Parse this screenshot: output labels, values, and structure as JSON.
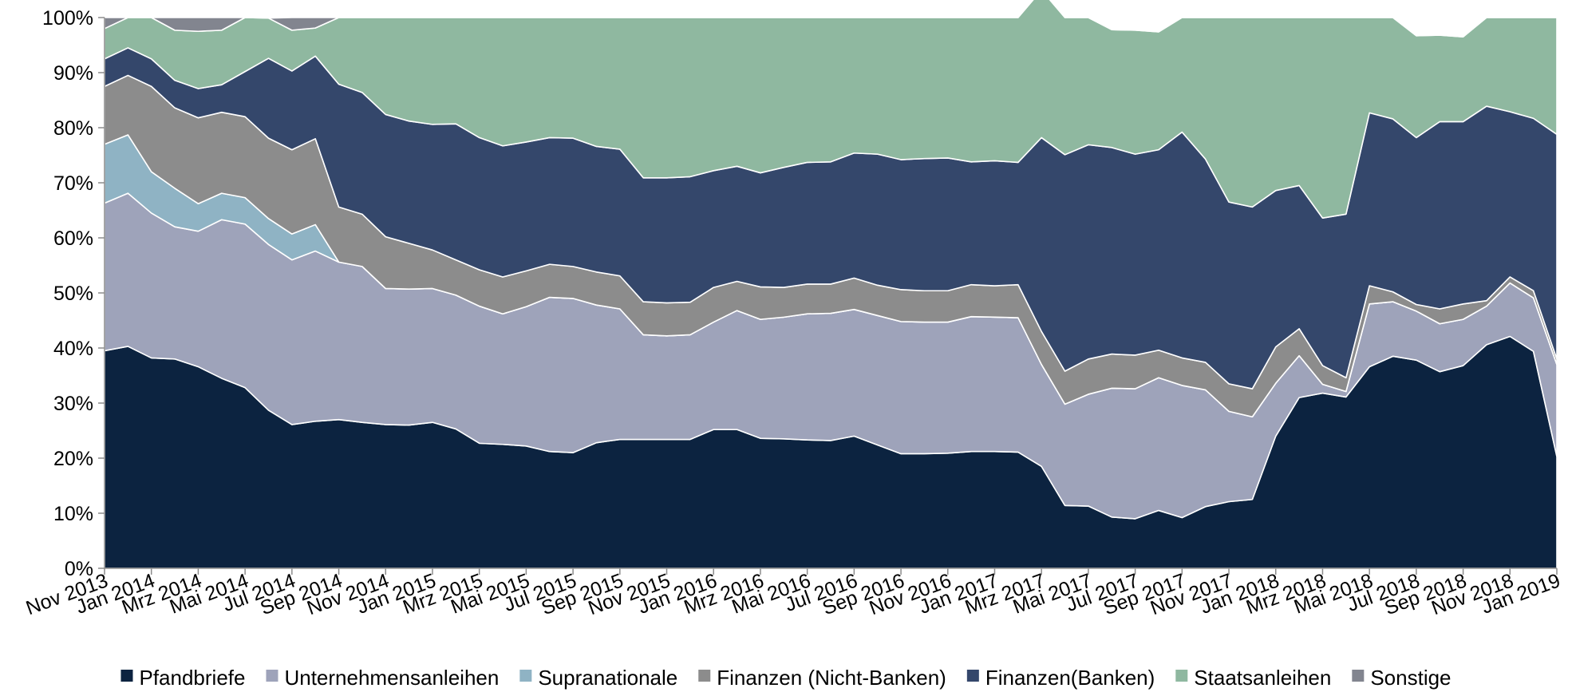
{
  "chart_data": {
    "type": "area",
    "stacked": true,
    "normalized": true,
    "x": [
      "Nov 2013",
      "Dez 2013",
      "Jan 2014",
      "Feb 2014",
      "Mrz 2014",
      "Apr 2014",
      "Mai 2014",
      "Jun 2014",
      "Jul 2014",
      "Aug 2014",
      "Sep 2014",
      "Okt 2014",
      "Nov 2014",
      "Dez 2014",
      "Jan 2015",
      "Feb 2015",
      "Mrz 2015",
      "Apr 2015",
      "Mai 2015",
      "Jun 2015",
      "Jul 2015",
      "Aug 2015",
      "Sep 2015",
      "Okt 2015",
      "Nov 2015",
      "Dez 2015",
      "Jan 2016",
      "Feb 2016",
      "Mrz 2016",
      "Apr 2016",
      "Mai 2016",
      "Jun 2016",
      "Jul 2016",
      "Aug 2016",
      "Sep 2016",
      "Okt 2016",
      "Nov 2016",
      "Dez 2016",
      "Jan 2017",
      "Feb 2017",
      "Mrz 2017",
      "Apr 2017",
      "Mai 2017",
      "Jun 2017",
      "Jul 2017",
      "Aug 2017",
      "Sep 2017",
      "Okt 2017",
      "Nov 2017",
      "Dez 2017",
      "Jan 2018",
      "Feb 2018",
      "Mrz 2018",
      "Apr 2018",
      "Mai 2018",
      "Jun 2018",
      "Jul 2018",
      "Aug 2018",
      "Sep 2018",
      "Okt 2018",
      "Nov 2018",
      "Dez 2018",
      "Jan 2019"
    ],
    "x_tick_labels": [
      "Nov 2013",
      "Jan 2014",
      "Mrz 2014",
      "Mai 2014",
      "Jul 2014",
      "Sep 2014",
      "Nov 2014",
      "Jan 2015",
      "Mrz 2015",
      "Mai 2015",
      "Jul 2015",
      "Sep 2015",
      "Nov 2015",
      "Jan 2016",
      "Mrz 2016",
      "Mai 2016",
      "Jul 2016",
      "Sep 2016",
      "Nov 2016",
      "Jan 2017",
      "Mrz 2017",
      "Mai 2017",
      "Jul 2017",
      "Sep 2017",
      "Nov 2017",
      "Jan 2018",
      "Mrz 2018",
      "Mai 2018",
      "Jul 2018",
      "Sep 2018",
      "Nov 2018",
      "Jan 2019"
    ],
    "y_tick_labels": [
      "0%",
      "10%",
      "20%",
      "30%",
      "40%",
      "50%",
      "60%",
      "70%",
      "80%",
      "90%",
      "100%"
    ],
    "ylim": [
      0,
      100
    ],
    "y_unit": "%",
    "legend_position": "bottom",
    "grid": false,
    "series": [
      {
        "name": "Pfandbriefe",
        "color": "#0c2340",
        "values": [
          39.5,
          40.3,
          38.2,
          38.0,
          36.6,
          34.5,
          32.8,
          28.7,
          26.1,
          26.7,
          27.0,
          26.5,
          26.1,
          26.0,
          26.5,
          25.3,
          22.7,
          22.5,
          22.2,
          21.2,
          21.0,
          22.8,
          23.4,
          23.4,
          23.4,
          23.4,
          25.2,
          25.2,
          23.6,
          23.5,
          23.3,
          23.2,
          24.0,
          22.4,
          20.8,
          20.8,
          20.9,
          21.2,
          21.2,
          21.1,
          18.5,
          11.4,
          11.3,
          9.3,
          9.0,
          10.5,
          9.2,
          11.2,
          12.1,
          12.5,
          24.0,
          31.0,
          31.8,
          31.1,
          36.6,
          38.5,
          37.8,
          35.7,
          36.8,
          40.6,
          42.1,
          39.4,
          20.3
        ]
      },
      {
        "name": "Unternehmensanleihen",
        "color": "#9ea3ba",
        "values": [
          26.8,
          27.8,
          26.3,
          24.0,
          24.6,
          28.8,
          29.7,
          30.1,
          29.9,
          30.9,
          28.6,
          28.3,
          24.7,
          24.7,
          24.3,
          24.3,
          24.9,
          23.7,
          25.3,
          28.0,
          28.0,
          25.0,
          23.7,
          19.0,
          18.8,
          19.0,
          19.5,
          21.6,
          21.6,
          22.1,
          22.9,
          23.1,
          23.0,
          23.5,
          24.0,
          23.9,
          23.8,
          24.5,
          24.4,
          24.4,
          18.5,
          18.4,
          20.3,
          23.4,
          23.6,
          24.1,
          24.0,
          21.2,
          16.4,
          15.0,
          9.6,
          7.6,
          1.6,
          1.0,
          11.4,
          9.9,
          8.9,
          8.7,
          8.4,
          7.0,
          9.7,
          9.7,
          16.7
        ]
      },
      {
        "name": "Supranationale",
        "color": "#8fb3c4",
        "values": [
          10.7,
          10.6,
          7.5,
          7.0,
          5.0,
          4.8,
          4.8,
          4.7,
          4.7,
          4.8,
          0,
          0,
          0,
          0,
          0,
          0,
          0,
          0,
          0,
          0,
          0,
          0,
          0,
          0,
          0,
          0,
          0,
          0,
          0,
          0,
          0,
          0,
          0,
          0,
          0,
          0,
          0,
          0,
          0,
          0,
          0,
          0,
          0,
          0,
          0,
          0,
          0,
          0,
          0,
          0,
          0,
          0,
          0,
          0,
          0,
          0,
          0,
          0,
          0,
          0,
          0,
          0,
          0
        ]
      },
      {
        "name": "Finanzen (Nicht-Banken)",
        "color": "#8c8c8c",
        "values": [
          10.5,
          10.8,
          15.5,
          14.6,
          15.6,
          14.7,
          14.7,
          14.6,
          15.3,
          15.6,
          10.0,
          9.5,
          9.4,
          8.3,
          7.0,
          6.4,
          6.6,
          6.7,
          6.5,
          6.0,
          5.8,
          6.0,
          6.0,
          6.0,
          6.0,
          5.9,
          6.3,
          5.3,
          5.9,
          5.4,
          5.4,
          5.3,
          5.7,
          5.5,
          5.8,
          5.7,
          5.7,
          5.8,
          5.7,
          6.0,
          6.0,
          6.0,
          6.4,
          6.2,
          6.1,
          5.0,
          5.0,
          5.0,
          5.0,
          5.1,
          6.6,
          4.9,
          3.4,
          2.5,
          3.3,
          1.8,
          1.2,
          2.7,
          2.8,
          1.0,
          1.1,
          1.3,
          1.0
        ]
      },
      {
        "name": "Finanzen(Banken)",
        "color": "#34476b",
        "values": [
          5.0,
          5.0,
          5.0,
          5.0,
          5.3,
          5.0,
          8.2,
          14.5,
          14.3,
          15.0,
          22.3,
          22.1,
          22.2,
          22.2,
          22.8,
          24.7,
          24.0,
          23.8,
          23.4,
          23.0,
          23.3,
          22.8,
          23.0,
          22.5,
          22.7,
          22.8,
          21.2,
          20.9,
          20.7,
          21.8,
          22.1,
          22.2,
          22.7,
          23.8,
          23.6,
          24.0,
          24.1,
          22.3,
          22.7,
          22.2,
          35.2,
          39.3,
          38.9,
          37.5,
          36.5,
          36.4,
          41.0,
          36.9,
          33.0,
          33.0,
          28.4,
          26.0,
          26.8,
          29.7,
          31.4,
          31.4,
          30.3,
          34.0,
          33.1,
          35.3,
          30.0,
          31.3,
          40.8
        ]
      },
      {
        "name": "Staatsanleihen",
        "color": "#8fb8a0",
        "values": [
          5.5,
          5.5,
          7.5,
          9.1,
          10.4,
          9.9,
          9.8,
          7.3,
          7.4,
          5.1,
          12.1,
          13.6,
          17.6,
          18.8,
          19.4,
          19.3,
          21.8,
          23.3,
          22.6,
          21.8,
          21.9,
          23.4,
          23.9,
          29.1,
          29.1,
          28.9,
          27.8,
          27.0,
          28.2,
          27.2,
          26.3,
          26.2,
          24.6,
          24.8,
          25.8,
          25.6,
          25.5,
          26.2,
          26.0,
          26.3,
          26.8,
          24.9,
          23.1,
          21.4,
          22.5,
          21.4,
          20.8,
          25.7,
          33.5,
          34.4,
          31.4,
          30.5,
          36.4,
          35.7,
          17.3,
          18.4,
          18.5,
          15.7,
          15.4,
          16.1,
          17.1,
          18.3,
          21.2
        ]
      },
      {
        "name": "Sonstige",
        "color": "#82858f",
        "values": [
          2.0,
          0,
          0,
          2.3,
          2.5,
          2.3,
          0,
          0,
          2.3,
          1.9,
          0,
          0,
          0,
          0,
          0,
          0,
          0,
          0,
          0,
          0,
          0,
          0,
          0,
          0,
          0,
          0,
          0,
          0,
          0,
          0,
          0,
          0,
          0,
          0,
          0,
          0,
          0,
          0,
          0,
          0,
          0,
          0,
          0,
          0,
          0,
          0,
          0,
          0,
          0,
          0,
          0,
          0,
          0,
          0,
          0,
          0,
          0,
          0,
          0,
          0,
          0,
          0,
          0
        ]
      }
    ]
  }
}
